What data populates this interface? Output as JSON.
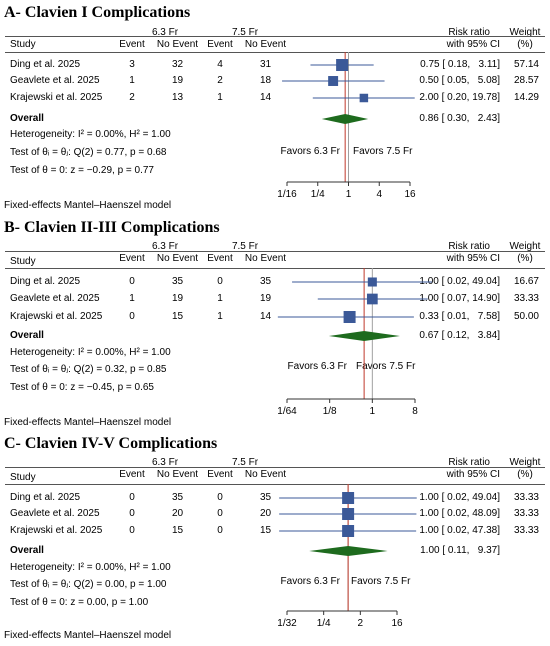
{
  "chart_data": [
    {
      "type": "forest",
      "title": "A- Clavien I Complications",
      "group1": "6.3 Fr",
      "group2": "7.5 Fr",
      "col_event": "Event",
      "col_noevent": "No Event",
      "col_study": "Study",
      "col_rr_1": "Risk ratio",
      "col_rr_2": "with 95% CI",
      "col_weight_1": "Weight",
      "col_weight_2": "(%)",
      "studies": [
        {
          "name": "Ding et al. 2025",
          "e1": "3",
          "n1": "32",
          "e2": "4",
          "n2": "31",
          "rr": 0.75,
          "lo": 0.18,
          "hi": 3.11,
          "ci_text": "0.75 [ 0.18,   3.11]",
          "weight": 57.14,
          "weight_text": "57.14"
        },
        {
          "name": "Geavlete et al. 2025",
          "e1": "1",
          "n1": "19",
          "e2": "2",
          "n2": "18",
          "rr": 0.5,
          "lo": 0.05,
          "hi": 5.08,
          "ci_text": "0.50 [ 0.05,   5.08]",
          "weight": 28.57,
          "weight_text": "28.57"
        },
        {
          "name": "Krajewski et al. 2025",
          "e1": "2",
          "n1": "13",
          "e2": "1",
          "n2": "14",
          "rr": 2.0,
          "lo": 0.2,
          "hi": 19.78,
          "ci_text": "2.00 [ 0.20, 19.78]",
          "weight": 14.29,
          "weight_text": "14.29"
        }
      ],
      "overall": {
        "label": "Overall",
        "rr": 0.86,
        "lo": 0.3,
        "hi": 2.43,
        "ci_text": "0.86 [ 0.30,   2.43]"
      },
      "heterogeneity": "Heterogeneity: I² = 0.00%, H² = 1.00",
      "test_q": "Test of θᵢ = θⱼ: Q(2) = 0.77, p = 0.68",
      "test_theta": "Test of θ = 0: z = −0.29, p = 0.77",
      "favors_left": "Favors 6.3 Fr",
      "favors_right": "Favors 7.5 Fr",
      "xscale": "log",
      "ticks": [
        {
          "v": 0.0625,
          "label": "1/16"
        },
        {
          "v": 0.25,
          "label": "1/4"
        },
        {
          "v": 1,
          "label": "1"
        },
        {
          "v": 4,
          "label": "4"
        },
        {
          "v": 16,
          "label": "16"
        }
      ],
      "model_note": "Fixed-effects Mantel–Haenszel model"
    },
    {
      "type": "forest",
      "title": "B- Clavien II-III Complications",
      "group1": "6.3 Fr",
      "group2": "7.5 Fr",
      "col_event": "Event",
      "col_noevent": "No Event",
      "col_study": "Study",
      "col_rr_1": "Risk ratio",
      "col_rr_2": "with 95% CI",
      "col_weight_1": "Weight",
      "col_weight_2": "(%)",
      "studies": [
        {
          "name": "Ding et al. 2025",
          "e1": "0",
          "n1": "35",
          "e2": "0",
          "n2": "35",
          "rr": 1.0,
          "lo": 0.02,
          "hi": 49.04,
          "ci_text": "1.00 [ 0.02, 49.04]",
          "weight": 16.67,
          "weight_text": "16.67"
        },
        {
          "name": "Geavlete et al. 2025",
          "e1": "1",
          "n1": "19",
          "e2": "1",
          "n2": "19",
          "rr": 1.0,
          "lo": 0.07,
          "hi": 14.9,
          "ci_text": "1.00 [ 0.07, 14.90]",
          "weight": 33.33,
          "weight_text": "33.33"
        },
        {
          "name": "Krajewski et al. 2025",
          "e1": "0",
          "n1": "15",
          "e2": "1",
          "n2": "14",
          "rr": 0.33,
          "lo": 0.01,
          "hi": 7.58,
          "ci_text": "0.33 [ 0.01,   7.58]",
          "weight": 50.0,
          "weight_text": "50.00"
        }
      ],
      "overall": {
        "label": "Overall",
        "rr": 0.67,
        "lo": 0.12,
        "hi": 3.84,
        "ci_text": "0.67 [ 0.12,   3.84]"
      },
      "heterogeneity": "Heterogeneity: I² = 0.00%, H² = 1.00",
      "test_q": "Test of θᵢ = θⱼ: Q(2) = 0.32, p = 0.85",
      "test_theta": "Test of θ = 0: z = −0.45, p = 0.65",
      "favors_left": "Favors 6.3 Fr",
      "favors_right": "Favors 7.5 Fr",
      "xscale": "log",
      "ticks": [
        {
          "v": 0.015625,
          "label": "1/64"
        },
        {
          "v": 0.125,
          "label": "1/8"
        },
        {
          "v": 1,
          "label": "1"
        },
        {
          "v": 8,
          "label": "8"
        }
      ],
      "model_note": "Fixed-effects Mantel–Haenszel model"
    },
    {
      "type": "forest",
      "title": "C- Clavien IV-V Complications",
      "group1": "6.3 Fr",
      "group2": "7.5 Fr",
      "col_event": "Event",
      "col_noevent": "No Event",
      "col_study": "Study",
      "col_rr_1": "Risk ratio",
      "col_rr_2": "with 95% CI",
      "col_weight_1": "Weight",
      "col_weight_2": "(%)",
      "studies": [
        {
          "name": "Ding et al. 2025",
          "e1": "0",
          "n1": "35",
          "e2": "0",
          "n2": "35",
          "rr": 1.0,
          "lo": 0.02,
          "hi": 49.04,
          "ci_text": "1.00 [ 0.02, 49.04]",
          "weight": 33.33,
          "weight_text": "33.33"
        },
        {
          "name": "Geavlete et al. 2025",
          "e1": "0",
          "n1": "20",
          "e2": "0",
          "n2": "20",
          "rr": 1.0,
          "lo": 0.02,
          "hi": 48.09,
          "ci_text": "1.00 [ 0.02, 48.09]",
          "weight": 33.33,
          "weight_text": "33.33"
        },
        {
          "name": "Krajewski et al. 2025",
          "e1": "0",
          "n1": "15",
          "e2": "0",
          "n2": "15",
          "rr": 1.0,
          "lo": 0.02,
          "hi": 47.38,
          "ci_text": "1.00 [ 0.02, 47.38]",
          "weight": 33.33,
          "weight_text": "33.33"
        }
      ],
      "overall": {
        "label": "Overall",
        "rr": 1.0,
        "lo": 0.11,
        "hi": 9.37,
        "ci_text": "1.00 [ 0.11,   9.37]"
      },
      "heterogeneity": "Heterogeneity: I² = 0.00%, H² = 1.00",
      "test_q": "Test of θᵢ = θⱼ: Q(2) = 0.00, p = 1.00",
      "test_theta": "Test of θ = 0: z = 0.00, p = 1.00",
      "favors_left": "Favors 6.3 Fr",
      "favors_right": "Favors 7.5 Fr",
      "xscale": "log",
      "ticks": [
        {
          "v": 0.03125,
          "label": "1/32"
        },
        {
          "v": 0.25,
          "label": "1/4"
        },
        {
          "v": 2,
          "label": "2"
        },
        {
          "v": 16,
          "label": "16"
        }
      ],
      "model_note": "Fixed-effects Mantel–Haenszel model"
    }
  ],
  "colors": {
    "marker": "#3b5998",
    "ci_line": "#3b5998",
    "diamond": "#1e6b1e",
    "null_line": "#a0a0a0",
    "overall_line": "#c0392b",
    "rule": "#555555"
  }
}
